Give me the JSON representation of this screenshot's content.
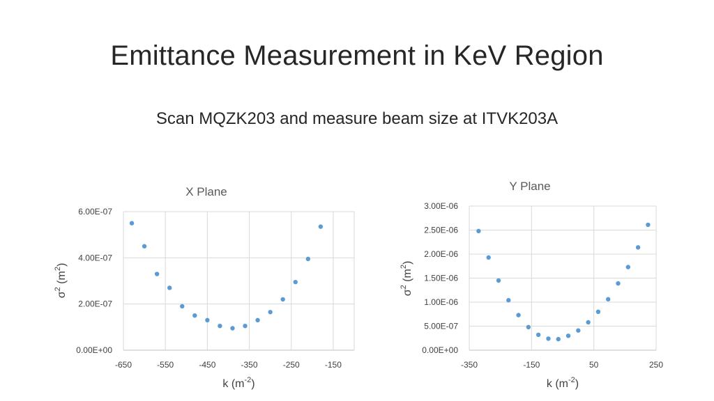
{
  "slide": {
    "title": "Emittance Measurement in KeV Region",
    "subtitle": "Scan MQZK203 and measure beam size at ITVK203A"
  },
  "colors": {
    "marker": "#5b9bd5",
    "grid": "#d9d9d9",
    "axis": "#bfbfbf"
  },
  "chart_data": [
    {
      "type": "scatter",
      "title": "X Plane",
      "xlabel": {
        "base": "k (m",
        "sup": "-2",
        "end": ")"
      },
      "ylabel": {
        "base": "σ",
        "sup": "2",
        "mid": " (m",
        "sup2": "2",
        "end": ")"
      },
      "xlim": [
        -650,
        -100
      ],
      "ylim": [
        0,
        6e-07
      ],
      "xticks": [
        -650,
        -550,
        -450,
        -350,
        -250,
        -150
      ],
      "xtick_labels": [
        "-650",
        "-550",
        "-450",
        "-350",
        "-250",
        "-150"
      ],
      "yticks": [
        0,
        2e-07,
        4e-07,
        6e-07
      ],
      "ytick_labels": [
        "0.00E+00",
        "2.00E-07",
        "4.00E-07",
        "6.00E-07"
      ],
      "vgrid": [
        -650,
        -550,
        -450,
        -350,
        -250,
        -150
      ],
      "grid": true,
      "x": [
        -630,
        -600,
        -570,
        -540,
        -510,
        -480,
        -450,
        -420,
        -390,
        -360,
        -330,
        -300,
        -270,
        -240,
        -210,
        -180
      ],
      "y": [
        5.5e-07,
        4.5e-07,
        3.3e-07,
        2.7e-07,
        1.9e-07,
        1.5e-07,
        1.3e-07,
        1.05e-07,
        9.5e-08,
        1.05e-07,
        1.3e-07,
        1.65e-07,
        2.2e-07,
        2.95e-07,
        3.95e-07,
        5.35e-07
      ]
    },
    {
      "type": "scatter",
      "title": "Y Plane",
      "xlabel": {
        "base": "k (m",
        "sup": "-2",
        "end": ")"
      },
      "ylabel": {
        "base": "σ",
        "sup": "2",
        "mid": " (m",
        "sup2": "2",
        "end": ")"
      },
      "xlim": [
        -350,
        250
      ],
      "ylim": [
        0,
        3e-06
      ],
      "xticks": [
        -350,
        -150,
        50,
        250
      ],
      "xtick_labels": [
        "-350",
        "-150",
        "50",
        "250"
      ],
      "yticks": [
        0,
        5e-07,
        1e-06,
        1.5e-06,
        2e-06,
        2.5e-06,
        3e-06
      ],
      "ytick_labels": [
        "0.00E+00",
        "5.00E-07",
        "1.00E-06",
        "1.50E-06",
        "2.00E-06",
        "2.50E-06",
        "3.00E-06"
      ],
      "vgrid": [
        -350,
        -150,
        50,
        250
      ],
      "grid": true,
      "x": [
        -320,
        -288,
        -256,
        -224,
        -192,
        -160,
        -128,
        -96,
        -64,
        -32,
        0,
        32,
        64,
        96,
        128,
        160,
        192,
        224
      ],
      "y": [
        2.48e-06,
        1.93e-06,
        1.45e-06,
        1.04e-06,
        7.3e-07,
        4.8e-07,
        3.2e-07,
        2.4e-07,
        2.3e-07,
        3e-07,
        4.1e-07,
        5.8e-07,
        8e-07,
        1.06e-06,
        1.39e-06,
        1.73e-06,
        2.14e-06,
        2.61e-06
      ]
    }
  ]
}
